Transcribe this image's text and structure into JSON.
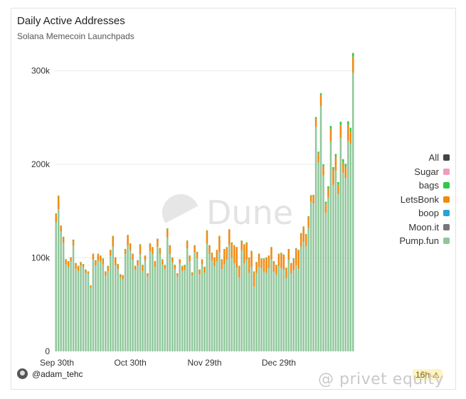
{
  "header": {
    "title": "Daily Active Addresses",
    "subtitle": "Solana Memecoin Launchpads"
  },
  "watermark": {
    "text": "Dune"
  },
  "footer": {
    "author": "@adam_tehc",
    "age_badge": "16h",
    "overlay_text": "@ privet equity"
  },
  "colors": {
    "pump_fun": "#8fc79b",
    "lets_bonk": "#ef8a12",
    "bags": "#33c748",
    "boop": "#2aa3d8",
    "moon_it": "#777777",
    "sugar": "#f19ac0",
    "all": "#444444"
  },
  "legend": [
    {
      "label": "All",
      "color": "#444444"
    },
    {
      "label": "Sugar",
      "color": "#f19ac0"
    },
    {
      "label": "bags",
      "color": "#33c748"
    },
    {
      "label": "LetsBonk",
      "color": "#ef8a12"
    },
    {
      "label": "boop",
      "color": "#2aa3d8"
    },
    {
      "label": "Moon.it",
      "color": "#777777"
    },
    {
      "label": "Pump.fun",
      "color": "#8fc79b"
    }
  ],
  "chart_data": {
    "type": "bar",
    "stacked": true,
    "title": "Daily Active Addresses",
    "subtitle": "Solana Memecoin Launchpads",
    "ylim": [
      0,
      330000
    ],
    "yticks": [
      0,
      100000,
      200000,
      300000
    ],
    "ytick_labels": [
      "0",
      "100k",
      "200k",
      "300k"
    ],
    "xtick_labels": [
      {
        "label": "Sep 30th",
        "index": 0
      },
      {
        "label": "Oct 30th",
        "index": 30
      },
      {
        "label": "Nov 29th",
        "index": 60
      },
      {
        "label": "Dec 29th",
        "index": 90
      }
    ],
    "n_days": 121,
    "series": [
      {
        "name": "Pump.fun",
        "color": "#8fc79b",
        "values": [
          138000,
          152000,
          128000,
          116000,
          93000,
          90000,
          96000,
          113000,
          88000,
          86000,
          92000,
          90000,
          84000,
          83000,
          68000,
          98000,
          92000,
          97000,
          96000,
          93000,
          81000,
          86000,
          102000,
          112000,
          92000,
          88000,
          79000,
          77000,
          104000,
          113000,
          108000,
          98000,
          87000,
          92000,
          104000,
          86000,
          97000,
          80000,
          107000,
          104000,
          90000,
          112000,
          104000,
          93000,
          88000,
          122000,
          104000,
          95000,
          88000,
          80000,
          94000,
          86000,
          87000,
          110000,
          96000,
          81000,
          106000,
          100000,
          82000,
          93000,
          84000,
          115000,
          104000,
          97000,
          91000,
          96000,
          106000,
          88000,
          93000,
          98000,
          114000,
          100000,
          94000,
          89000,
          79000,
          108000,
          94000,
          98000,
          84000,
          90000,
          69000,
          84000,
          90000,
          89000,
          85000,
          84000,
          89000,
          98000,
          85000,
          82000,
          91000,
          89000,
          87000,
          78000,
          98000,
          83000,
          87000,
          92000,
          88000,
          112000,
          117000,
          112000,
          132000,
          160000,
          158000,
          240000,
          202000,
          262000,
          188000,
          148000,
          165000,
          224000,
          178000,
          193000,
          168000,
          228000,
          191000,
          185000,
          225000,
          222000,
          298000
        ]
      },
      {
        "name": "LetsBonk",
        "color": "#ef8a12",
        "values": [
          9000,
          14000,
          6000,
          6000,
          5000,
          6000,
          4000,
          6000,
          6000,
          5000,
          3000,
          3000,
          3000,
          2000,
          2000,
          6000,
          5000,
          7000,
          6000,
          6000,
          4000,
          5000,
          6000,
          11000,
          8000,
          5000,
          3000,
          4000,
          5000,
          11000,
          7000,
          6000,
          4000,
          5000,
          10000,
          6000,
          5000,
          3000,
          8000,
          7000,
          6000,
          8000,
          6000,
          5000,
          4000,
          9000,
          9000,
          5000,
          4000,
          3000,
          4000,
          5000,
          5000,
          8000,
          6000,
          3000,
          7000,
          6000,
          5000,
          5000,
          6000,
          14000,
          9000,
          8000,
          9000,
          12000,
          17000,
          10000,
          16000,
          13000,
          16000,
          16000,
          19000,
          22000,
          12000,
          10000,
          20000,
          18000,
          16000,
          17000,
          16000,
          11000,
          14000,
          10000,
          14000,
          16000,
          13000,
          13000,
          11000,
          10000,
          13000,
          16000,
          16000,
          11000,
          11000,
          11000,
          12000,
          18000,
          20000,
          14000,
          16000,
          13000,
          12000,
          6000,
          8000,
          9000,
          10000,
          12000,
          10000,
          10000,
          9000,
          14000,
          16000,
          15000,
          10000,
          14000,
          11000,
          12000,
          17000,
          13000,
          17000
        ]
      },
      {
        "name": "bags",
        "color": "#33c748",
        "values": [
          500,
          500,
          500,
          500,
          500,
          500,
          500,
          500,
          500,
          500,
          500,
          500,
          500,
          500,
          500,
          500,
          500,
          500,
          500,
          500,
          500,
          500,
          500,
          500,
          500,
          500,
          500,
          500,
          500,
          500,
          500,
          500,
          500,
          500,
          500,
          500,
          500,
          500,
          500,
          500,
          500,
          500,
          500,
          500,
          500,
          500,
          500,
          500,
          500,
          500,
          500,
          500,
          500,
          500,
          500,
          500,
          500,
          500,
          500,
          500,
          500,
          500,
          500,
          500,
          500,
          500,
          500,
          500,
          500,
          500,
          500,
          500,
          500,
          500,
          500,
          500,
          500,
          500,
          500,
          500,
          500,
          500,
          500,
          500,
          500,
          500,
          500,
          500,
          500,
          500,
          500,
          500,
          500,
          500,
          500,
          500,
          500,
          500,
          500,
          500,
          500,
          500,
          500,
          1000,
          1200,
          1500,
          1500,
          2000,
          2000,
          2000,
          2500,
          3000,
          3000,
          3000,
          3000,
          3500,
          3500,
          3500,
          4000,
          4000,
          4000
        ]
      },
      {
        "name": "boop",
        "color": "#2aa3d8",
        "values": [
          0,
          0,
          0,
          0,
          0,
          0,
          0,
          0,
          0,
          0,
          0,
          0,
          0,
          0,
          0,
          0,
          0,
          0,
          0,
          0,
          0,
          0,
          0,
          0,
          0,
          0,
          0,
          0,
          0,
          0,
          0,
          0,
          0,
          0,
          0,
          0,
          0,
          0,
          0,
          0,
          0,
          0,
          0,
          0,
          0,
          0,
          0,
          0,
          0,
          0,
          0,
          0,
          0,
          0,
          0,
          0,
          0,
          0,
          0,
          0,
          0,
          0,
          0,
          0,
          0,
          0,
          0,
          0,
          0,
          0,
          0,
          0,
          0,
          0,
          0,
          0,
          0,
          0,
          0,
          0,
          0,
          0,
          0,
          0,
          0,
          0,
          0,
          0,
          0,
          0,
          0,
          0,
          0,
          0,
          0,
          0,
          0,
          0,
          0,
          0,
          0,
          0,
          0,
          0,
          0,
          0,
          0,
          0,
          0,
          0,
          0,
          0,
          0,
          0,
          0,
          0,
          0,
          0,
          0,
          0,
          0
        ]
      }
    ]
  }
}
